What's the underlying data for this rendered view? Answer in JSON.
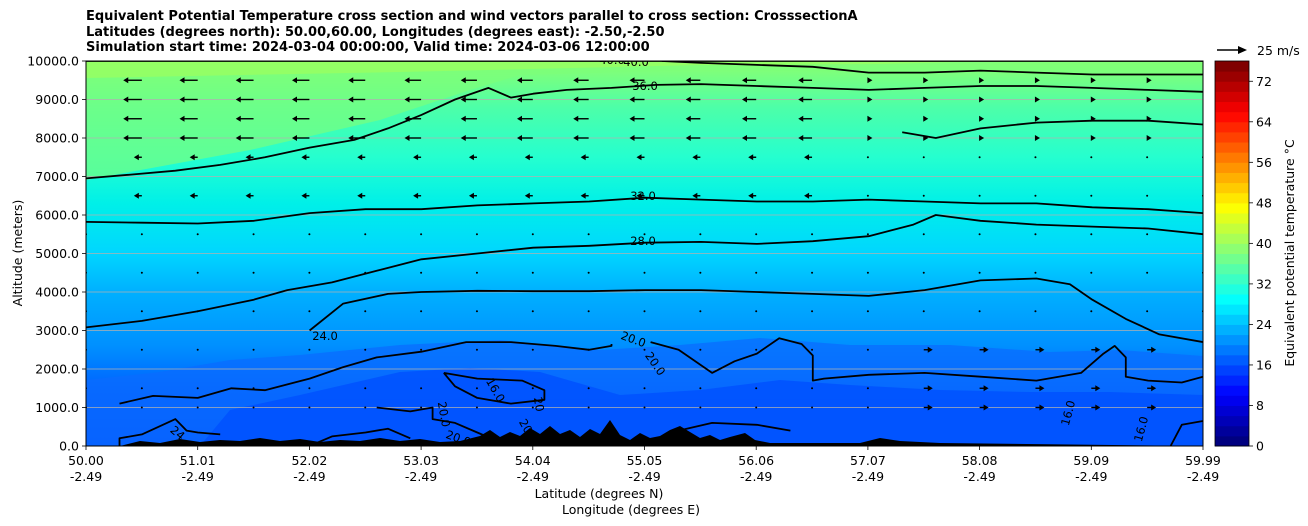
{
  "chart_data": {
    "type": "heatmap",
    "title_lines": [
      "Equivalent Potential Temperature cross section and wind vectors parallel to cross section: CrosssectionA",
      "Latitudes (degrees north): 50.00,60.00, Longitudes (degrees east): -2.50,-2.50",
      "Simulation start time: 2024-03-04 00:00:00, Valid time: 2024-03-06 12:00:00"
    ],
    "xlabel_lines": [
      "Latitude (degrees N)",
      "Longitude (degrees E)"
    ],
    "ylabel": "Altitude (meters)",
    "x_ticks": [
      {
        "lat": "50.00",
        "lon": "-2.49"
      },
      {
        "lat": "51.01",
        "lon": "-2.49"
      },
      {
        "lat": "52.02",
        "lon": "-2.49"
      },
      {
        "lat": "53.03",
        "lon": "-2.49"
      },
      {
        "lat": "54.04",
        "lon": "-2.49"
      },
      {
        "lat": "55.05",
        "lon": "-2.49"
      },
      {
        "lat": "56.06",
        "lon": "-2.49"
      },
      {
        "lat": "57.07",
        "lon": "-2.49"
      },
      {
        "lat": "58.08",
        "lon": "-2.49"
      },
      {
        "lat": "59.09",
        "lon": "-2.49"
      },
      {
        "lat": "59.99",
        "lon": "-2.49"
      }
    ],
    "y_ticks": [
      "0.0",
      "1000.0",
      "2000.0",
      "3000.0",
      "4000.0",
      "5000.0",
      "6000.0",
      "7000.0",
      "8000.0",
      "9000.0",
      "10000.0"
    ],
    "xlim": [
      50.0,
      59.99
    ],
    "ylim": [
      0,
      10000
    ],
    "grid": "horizontal",
    "colorbar": {
      "label": "Equivalent potential temperature $^\\circ$C",
      "ticks": [
        "0",
        "8",
        "16",
        "24",
        "32",
        "40",
        "48",
        "56",
        "64",
        "72"
      ],
      "range": [
        0,
        76
      ],
      "colormap": "jet"
    },
    "quiver_key": {
      "label": "25 m/s",
      "value": 25
    },
    "contour_lines": [
      {
        "level": "40.0",
        "points": [
          [
            50.0,
            10000
          ],
          [
            59.99,
            10000
          ]
        ]
      },
      {
        "level": "36.0",
        "points": [
          [
            50.0,
            6950
          ],
          [
            50.4,
            7050
          ],
          [
            50.8,
            7150
          ],
          [
            51.2,
            7300
          ],
          [
            51.6,
            7500
          ],
          [
            52.0,
            7750
          ],
          [
            52.4,
            7950
          ],
          [
            52.7,
            8250
          ],
          [
            53.0,
            8600
          ],
          [
            53.3,
            9000
          ],
          [
            53.6,
            9300
          ],
          [
            53.8,
            9050
          ],
          [
            54.0,
            9150
          ],
          [
            54.3,
            9250
          ],
          [
            54.7,
            9300
          ],
          [
            55.1,
            9380
          ],
          [
            55.5,
            9400
          ],
          [
            56.0,
            9350
          ],
          [
            56.5,
            9300
          ],
          [
            57.0,
            9250
          ],
          [
            57.5,
            9300
          ],
          [
            58.0,
            9350
          ],
          [
            58.5,
            9350
          ],
          [
            59.0,
            9300
          ],
          [
            59.5,
            9250
          ],
          [
            59.99,
            9200
          ]
        ]
      },
      {
        "level": "",
        "points": [
          [
            55.15,
            10000
          ],
          [
            55.5,
            9950
          ],
          [
            56.0,
            9900
          ],
          [
            56.5,
            9850
          ],
          [
            57.0,
            9700
          ],
          [
            57.5,
            9700
          ],
          [
            58.0,
            9750
          ],
          [
            58.5,
            9700
          ],
          [
            59.0,
            9650
          ],
          [
            59.5,
            9650
          ],
          [
            59.99,
            9650
          ]
        ]
      },
      {
        "level": "",
        "points": [
          [
            57.3,
            8150
          ],
          [
            57.6,
            8000
          ],
          [
            58.0,
            8250
          ],
          [
            58.5,
            8400
          ],
          [
            59.0,
            8450
          ],
          [
            59.5,
            8450
          ],
          [
            59.99,
            8350
          ]
        ]
      },
      {
        "level": "32.0",
        "points": [
          [
            50.0,
            5820
          ],
          [
            50.5,
            5800
          ],
          [
            51.0,
            5780
          ],
          [
            51.5,
            5850
          ],
          [
            52.0,
            6050
          ],
          [
            52.5,
            6150
          ],
          [
            53.0,
            6150
          ],
          [
            53.5,
            6250
          ],
          [
            54.0,
            6300
          ],
          [
            54.5,
            6350
          ],
          [
            55.0,
            6450
          ],
          [
            55.5,
            6400
          ],
          [
            56.0,
            6350
          ],
          [
            56.5,
            6350
          ],
          [
            57.0,
            6400
          ],
          [
            57.5,
            6350
          ],
          [
            58.0,
            6300
          ],
          [
            58.5,
            6300
          ],
          [
            59.0,
            6200
          ],
          [
            59.5,
            6150
          ],
          [
            59.99,
            6050
          ]
        ]
      },
      {
        "level": "28.0",
        "points": [
          [
            50.0,
            3080
          ],
          [
            50.5,
            3250
          ],
          [
            51.0,
            3500
          ],
          [
            51.5,
            3800
          ],
          [
            51.8,
            4050
          ],
          [
            52.2,
            4250
          ],
          [
            52.6,
            4550
          ],
          [
            53.0,
            4850
          ],
          [
            53.5,
            5000
          ],
          [
            54.0,
            5150
          ],
          [
            54.5,
            5200
          ],
          [
            55.0,
            5280
          ],
          [
            55.5,
            5300
          ],
          [
            56.0,
            5250
          ],
          [
            56.5,
            5320
          ],
          [
            57.0,
            5450
          ],
          [
            57.4,
            5750
          ],
          [
            57.6,
            6000
          ],
          [
            58.0,
            5850
          ],
          [
            58.5,
            5750
          ],
          [
            59.0,
            5700
          ],
          [
            59.5,
            5650
          ],
          [
            59.99,
            5500
          ]
        ]
      },
      {
        "level": "24.0",
        "points": [
          [
            52.0,
            3000
          ],
          [
            52.3,
            3700
          ],
          [
            52.7,
            3950
          ],
          [
            53.0,
            4000
          ],
          [
            53.5,
            4030
          ],
          [
            54.0,
            4020
          ],
          [
            54.5,
            4020
          ],
          [
            55.0,
            4050
          ],
          [
            55.5,
            4050
          ],
          [
            56.0,
            4000
          ],
          [
            56.5,
            3950
          ],
          [
            57.0,
            3900
          ],
          [
            57.5,
            4050
          ],
          [
            58.0,
            4300
          ],
          [
            58.5,
            4350
          ],
          [
            58.8,
            4200
          ],
          [
            59.0,
            3800
          ],
          [
            59.3,
            3300
          ],
          [
            59.6,
            2900
          ],
          [
            59.99,
            2700
          ]
        ]
      },
      {
        "level": "20.0",
        "points": [
          [
            50.3,
            1100
          ],
          [
            50.6,
            1300
          ],
          [
            51.0,
            1250
          ],
          [
            51.3,
            1500
          ],
          [
            51.6,
            1450
          ],
          [
            52.0,
            1750
          ],
          [
            52.3,
            2050
          ],
          [
            52.6,
            2300
          ],
          [
            53.0,
            2450
          ],
          [
            53.4,
            2700
          ],
          [
            53.8,
            2700
          ],
          [
            54.2,
            2600
          ],
          [
            54.5,
            2500
          ],
          [
            54.7,
            2600
          ],
          [
            54.7,
            2650
          ]
        ]
      },
      {
        "level": "20.0",
        "points": [
          [
            55.05,
            2700
          ],
          [
            55.3,
            2500
          ],
          [
            55.6,
            1900
          ],
          [
            55.8,
            2200
          ],
          [
            56.0,
            2400
          ],
          [
            56.2,
            2800
          ],
          [
            56.4,
            2650
          ],
          [
            56.5,
            2350
          ],
          [
            56.5,
            1700
          ],
          [
            56.6,
            1750
          ],
          [
            57.0,
            1850
          ],
          [
            57.5,
            1900
          ],
          [
            58.0,
            1800
          ],
          [
            58.5,
            1700
          ],
          [
            58.9,
            1900
          ],
          [
            59.1,
            2400
          ],
          [
            59.2,
            2600
          ],
          [
            59.3,
            2300
          ],
          [
            59.3,
            1800
          ],
          [
            59.5,
            1700
          ],
          [
            59.8,
            1650
          ],
          [
            59.99,
            1800
          ]
        ]
      },
      {
        "level": "16.0",
        "points": [
          [
            53.2,
            1900
          ],
          [
            53.5,
            1750
          ],
          [
            53.9,
            1700
          ],
          [
            54.1,
            1450
          ],
          [
            54.1,
            1200
          ],
          [
            53.8,
            1100
          ],
          [
            53.5,
            1250
          ],
          [
            53.3,
            1550
          ],
          [
            53.2,
            1900
          ]
        ]
      },
      {
        "level": "",
        "points": [
          [
            52.6,
            1000
          ],
          [
            52.9,
            900
          ],
          [
            53.1,
            1000
          ],
          [
            53.1,
            700
          ],
          [
            53.3,
            600
          ],
          [
            53.5,
            350
          ],
          [
            53.7,
            100
          ],
          [
            53.75,
            0
          ]
        ]
      },
      {
        "level": "",
        "points": [
          [
            50.3,
            0
          ],
          [
            50.3,
            200
          ],
          [
            50.5,
            300
          ],
          [
            50.8,
            700
          ],
          [
            50.9,
            400
          ],
          [
            51.0,
            350
          ],
          [
            51.2,
            300
          ]
        ]
      },
      {
        "level": "",
        "points": [
          [
            52.0,
            0
          ],
          [
            52.2,
            250
          ],
          [
            52.5,
            350
          ],
          [
            52.7,
            450
          ],
          [
            52.9,
            200
          ]
        ]
      },
      {
        "level": "",
        "points": [
          [
            55.3,
            400
          ],
          [
            55.6,
            600
          ],
          [
            56.0,
            550
          ],
          [
            56.3,
            400
          ]
        ]
      },
      {
        "level": "",
        "points": [
          [
            59.7,
            0
          ],
          [
            59.8,
            550
          ],
          [
            59.99,
            650
          ]
        ]
      }
    ],
    "contour_labels": [
      "40.0",
      "40.0",
      "36.0",
      "32.0",
      "28.0",
      "24.0",
      "20.0",
      "20.0",
      "20.0",
      "20.0",
      "20.0",
      "16.0",
      "16.0",
      "16.0",
      "24",
      "20"
    ]
  }
}
